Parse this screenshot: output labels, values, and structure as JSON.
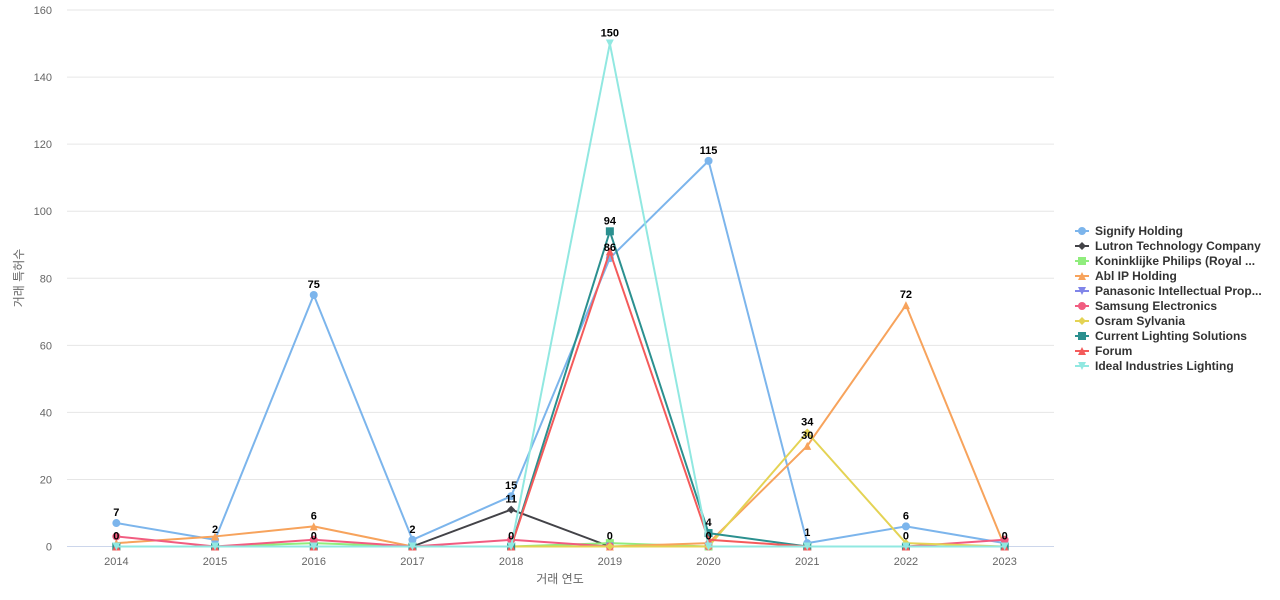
{
  "chart_data": {
    "type": "line",
    "xlabel": "거래 연도",
    "ylabel": "거래 특허수",
    "x": [
      "2014",
      "2015",
      "2016",
      "2017",
      "2018",
      "2019",
      "2020",
      "2021",
      "2022",
      "2023"
    ],
    "ylim": [
      0,
      160
    ],
    "yticks": [
      "0",
      "20",
      "40",
      "60",
      "80",
      "100",
      "120",
      "140",
      "160"
    ],
    "grid": true,
    "legend_position": "right",
    "series": [
      {
        "name": "Signify Holding",
        "color": "#7cb5ec",
        "marker": "circle",
        "values": [
          7,
          2,
          75,
          2,
          15,
          86,
          115,
          1,
          6,
          1
        ]
      },
      {
        "name": "Lutron Technology Company",
        "color": "#434348",
        "marker": "diamond",
        "values": [
          0,
          0,
          0,
          0,
          11,
          0,
          0,
          0,
          0,
          0
        ]
      },
      {
        "name": "Koninklijke Philips (Royal ...",
        "color": "#90ed7d",
        "marker": "square",
        "values": [
          0,
          0,
          1,
          0,
          0,
          1,
          0,
          0,
          0,
          0
        ]
      },
      {
        "name": "Abl IP Holding",
        "color": "#f7a35c",
        "marker": "triangle",
        "values": [
          1,
          3,
          6,
          0,
          0,
          0,
          1,
          30,
          72,
          0
        ]
      },
      {
        "name": "Panasonic Intellectual Prop...",
        "color": "#8085e9",
        "marker": "triangle-down",
        "values": [
          0,
          0,
          0,
          0,
          0,
          0,
          0,
          0,
          0,
          0
        ]
      },
      {
        "name": "Samsung Electronics",
        "color": "#f15c80",
        "marker": "circle",
        "values": [
          3,
          0,
          2,
          0,
          2,
          0,
          0,
          0,
          0,
          2
        ]
      },
      {
        "name": "Osram Sylvania",
        "color": "#e4d354",
        "marker": "diamond",
        "values": [
          0,
          0,
          0,
          0,
          0,
          0,
          0,
          34,
          1,
          0
        ]
      },
      {
        "name": "Current Lighting Solutions",
        "color": "#2b908f",
        "marker": "square",
        "values": [
          0,
          0,
          0,
          0,
          0,
          94,
          4,
          0,
          0,
          0
        ]
      },
      {
        "name": "Forum",
        "color": "#f45b5b",
        "marker": "triangle",
        "values": [
          0,
          0,
          0,
          0,
          0,
          88,
          2,
          0,
          0,
          0
        ]
      },
      {
        "name": "Ideal Industries Lighting",
        "color": "#91e8e1",
        "marker": "triangle-down",
        "values": [
          0,
          0,
          0,
          0,
          0,
          150,
          0,
          0,
          0,
          0
        ]
      }
    ],
    "data_labels": [
      {
        "x": "2014",
        "text": "7",
        "value": 7
      },
      {
        "x": "2014",
        "text": "0",
        "value": 0
      },
      {
        "x": "2015",
        "text": "2",
        "value": 2
      },
      {
        "x": "2016",
        "text": "75",
        "value": 75
      },
      {
        "x": "2016",
        "text": "6",
        "value": 6
      },
      {
        "x": "2016",
        "text": "0",
        "value": 0
      },
      {
        "x": "2017",
        "text": "2",
        "value": 2
      },
      {
        "x": "2018",
        "text": "15",
        "value": 15
      },
      {
        "x": "2018",
        "text": "11",
        "value": 11
      },
      {
        "x": "2018",
        "text": "0",
        "value": 0
      },
      {
        "x": "2019",
        "text": "150",
        "value": 150
      },
      {
        "x": "2019",
        "text": "94",
        "value": 94
      },
      {
        "x": "2019",
        "text": "86",
        "value": 86
      },
      {
        "x": "2019",
        "text": "0",
        "value": 0
      },
      {
        "x": "2020",
        "text": "115",
        "value": 115
      },
      {
        "x": "2020",
        "text": "4",
        "value": 4
      },
      {
        "x": "2020",
        "text": "0",
        "value": 0
      },
      {
        "x": "2021",
        "text": "34",
        "value": 34
      },
      {
        "x": "2021",
        "text": "30",
        "value": 30
      },
      {
        "x": "2021",
        "text": "1",
        "value": 1
      },
      {
        "x": "2022",
        "text": "72",
        "value": 72
      },
      {
        "x": "2022",
        "text": "6",
        "value": 6
      },
      {
        "x": "2022",
        "text": "0",
        "value": 0
      },
      {
        "x": "2023",
        "text": "0",
        "value": 0
      }
    ]
  }
}
